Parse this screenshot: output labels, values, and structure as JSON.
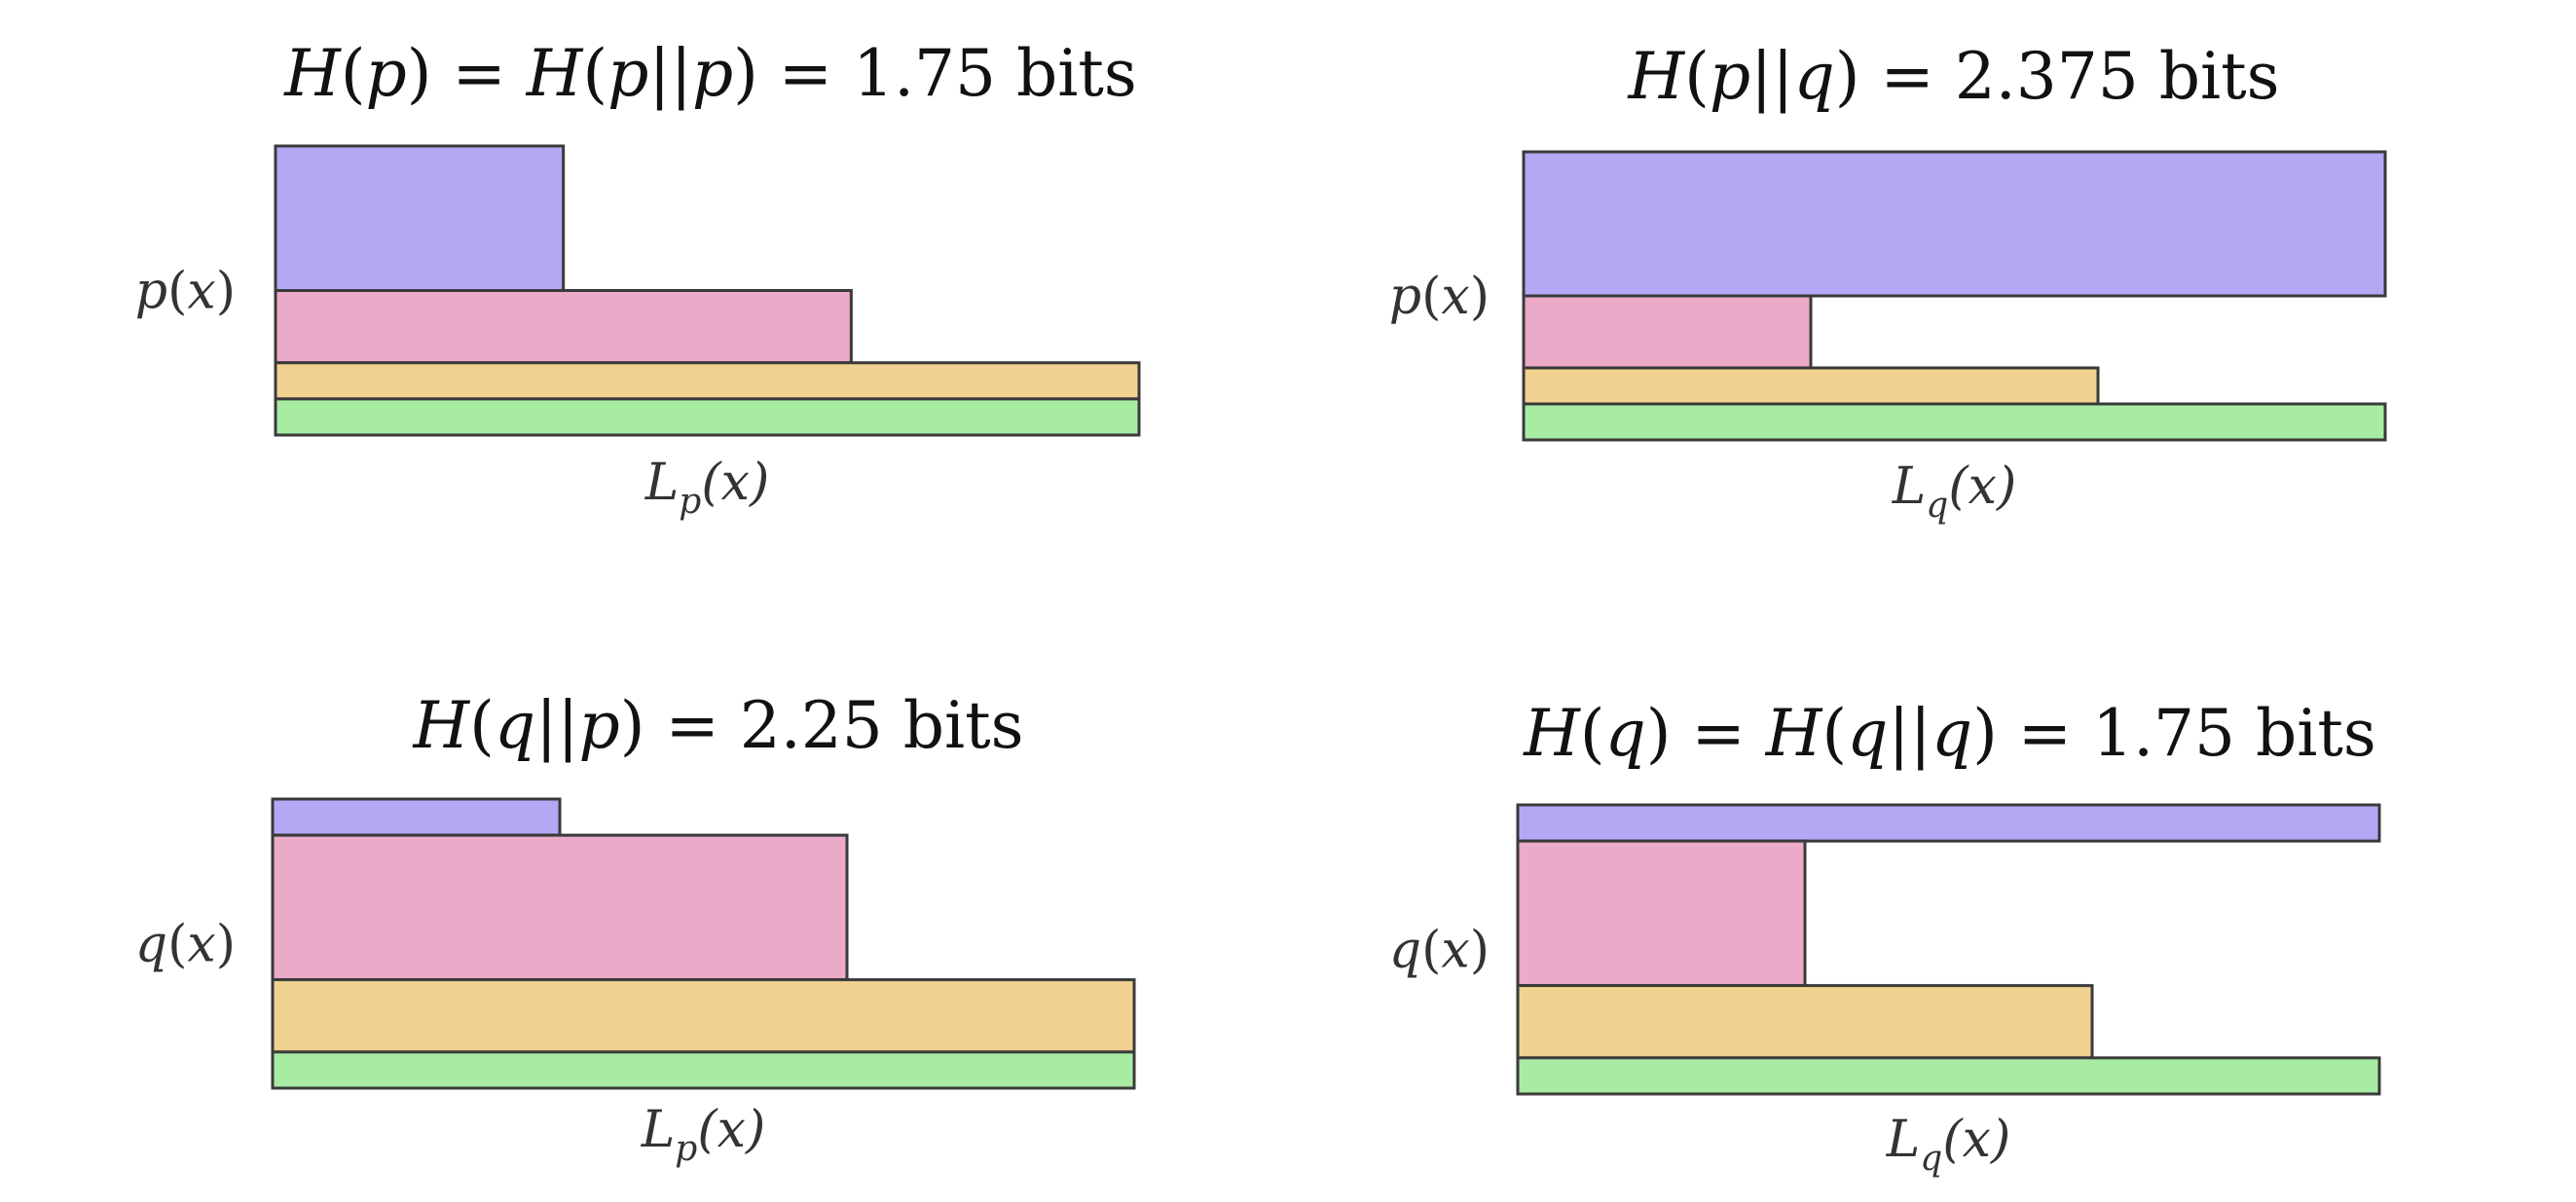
{
  "colors": {
    "x1": "#b4a8f5",
    "x2": "#eaaac8",
    "x3": "#f1d290",
    "x4": "#a8eca4",
    "stroke": "#3a3a3a"
  },
  "panels": [
    {
      "id": "p-p",
      "title": [
        {
          "t": "H",
          "i": true
        },
        {
          "t": "(",
          "i": false
        },
        {
          "t": "p",
          "i": true
        },
        {
          "t": ") = ",
          "i": false
        },
        {
          "t": "H",
          "i": true
        },
        {
          "t": "(",
          "i": false
        },
        {
          "t": "p",
          "i": true
        },
        {
          "t": "||",
          "i": false
        },
        {
          "t": "p",
          "i": true
        },
        {
          "t": ") = 1.75 bits",
          "i": false
        }
      ],
      "ylabel": [
        {
          "t": "p",
          "i": true
        },
        {
          "t": "(",
          "i": false
        },
        {
          "t": "x",
          "i": true
        },
        {
          "t": ")",
          "i": false
        }
      ],
      "xlabel": {
        "base": "L",
        "sub": "p",
        "tail": "(x)"
      },
      "probs": [
        0.5,
        0.25,
        0.125,
        0.125
      ],
      "lengths": [
        1,
        2,
        3,
        3
      ]
    },
    {
      "id": "p-q",
      "title": [
        {
          "t": "H",
          "i": true
        },
        {
          "t": "(",
          "i": false
        },
        {
          "t": "p",
          "i": true
        },
        {
          "t": "||",
          "i": false
        },
        {
          "t": "q",
          "i": true
        },
        {
          "t": ") = 2.375 bits",
          "i": false
        }
      ],
      "ylabel": [
        {
          "t": "p",
          "i": true
        },
        {
          "t": "(",
          "i": false
        },
        {
          "t": "x",
          "i": true
        },
        {
          "t": ")",
          "i": false
        }
      ],
      "xlabel": {
        "base": "L",
        "sub": "q",
        "tail": "(x)"
      },
      "probs": [
        0.5,
        0.25,
        0.125,
        0.125
      ],
      "lengths": [
        3,
        1,
        2,
        3
      ]
    },
    {
      "id": "q-p",
      "title": [
        {
          "t": "H",
          "i": true
        },
        {
          "t": "(",
          "i": false
        },
        {
          "t": "q",
          "i": true
        },
        {
          "t": "||",
          "i": false
        },
        {
          "t": "p",
          "i": true
        },
        {
          "t": ") = 2.25 bits",
          "i": false
        }
      ],
      "ylabel": [
        {
          "t": "q",
          "i": true
        },
        {
          "t": "(",
          "i": false
        },
        {
          "t": "x",
          "i": true
        },
        {
          "t": ")",
          "i": false
        }
      ],
      "xlabel": {
        "base": "L",
        "sub": "p",
        "tail": "(x)"
      },
      "probs": [
        0.125,
        0.5,
        0.25,
        0.125
      ],
      "lengths": [
        1,
        2,
        3,
        3
      ]
    },
    {
      "id": "q-q",
      "title": [
        {
          "t": "H",
          "i": true
        },
        {
          "t": "(",
          "i": false
        },
        {
          "t": "q",
          "i": true
        },
        {
          "t": ") = ",
          "i": false
        },
        {
          "t": "H",
          "i": true
        },
        {
          "t": "(",
          "i": false
        },
        {
          "t": "q",
          "i": true
        },
        {
          "t": "||",
          "i": false
        },
        {
          "t": "q",
          "i": true
        },
        {
          "t": ") = 1.75 bits",
          "i": false
        }
      ],
      "ylabel": [
        {
          "t": "q",
          "i": true
        },
        {
          "t": "(",
          "i": false
        },
        {
          "t": "x",
          "i": true
        },
        {
          "t": ")",
          "i": false
        }
      ],
      "xlabel": {
        "base": "L",
        "sub": "q",
        "tail": "(x)"
      },
      "probs": [
        0.125,
        0.5,
        0.25,
        0.125
      ],
      "lengths": [
        3,
        1,
        2,
        3
      ]
    }
  ]
}
